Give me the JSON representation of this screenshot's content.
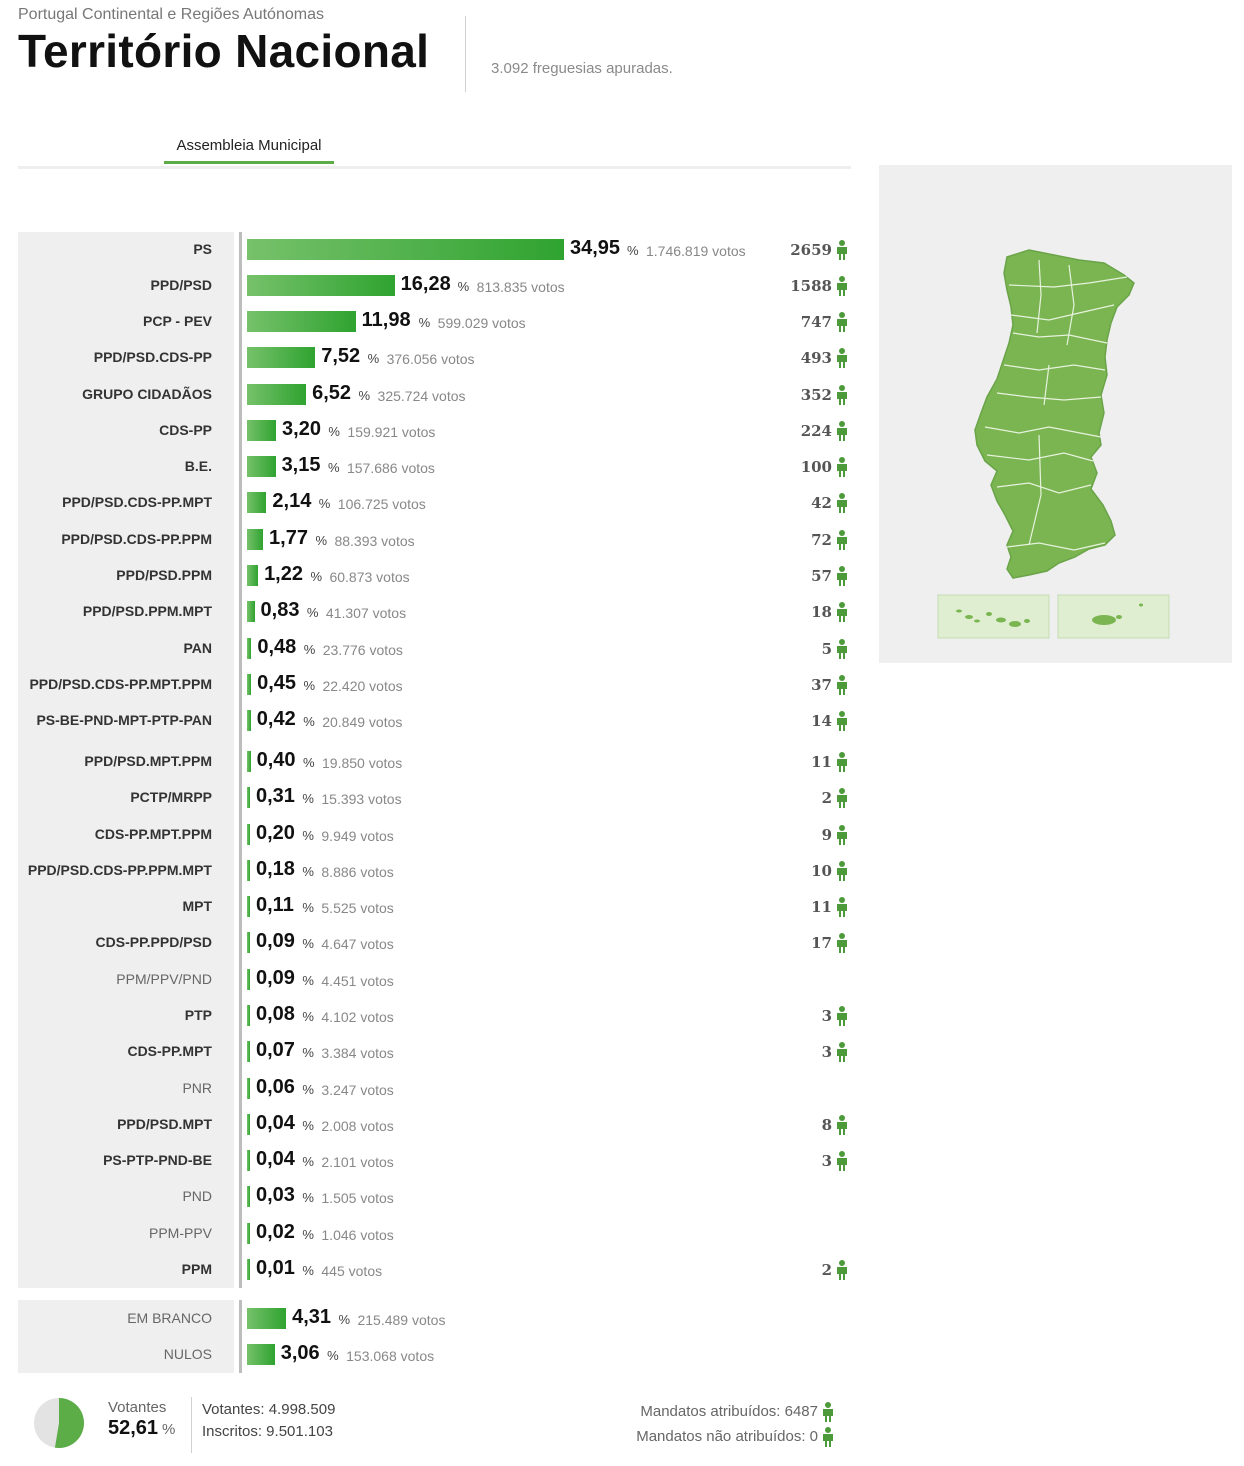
{
  "header": {
    "subtitle": "Portugal Continental e Regiões Autónomas",
    "title": "Território Nacional",
    "freguesias": "3.092 freguesias apuradas."
  },
  "tab": {
    "label": "Assembleia Municipal"
  },
  "colors": {
    "bar_start": "#76c16a",
    "bar_end": "#2fa330",
    "map_fill": "#7ab552",
    "person_icon": "#4d9a3a"
  },
  "chart_data": {
    "type": "bar",
    "orientation": "horizontal",
    "value_unit": "%",
    "xlim": [
      0,
      34.95
    ],
    "parties": [
      {
        "name": "PS",
        "pct": 34.95,
        "pct_label": "34,95",
        "votes": "1.746.819 votos",
        "mandates": "2659",
        "bold": true
      },
      {
        "name": "PPD/PSD",
        "pct": 16.28,
        "pct_label": "16,28",
        "votes": "813.835 votos",
        "mandates": "1588",
        "bold": true
      },
      {
        "name": "PCP - PEV",
        "pct": 11.98,
        "pct_label": "11,98",
        "votes": "599.029 votos",
        "mandates": "747",
        "bold": true
      },
      {
        "name": "PPD/PSD.CDS-PP",
        "pct": 7.52,
        "pct_label": "7,52",
        "votes": "376.056 votos",
        "mandates": "493",
        "bold": true
      },
      {
        "name": "GRUPO CIDADÃOS",
        "pct": 6.52,
        "pct_label": "6,52",
        "votes": "325.724 votos",
        "mandates": "352",
        "bold": true
      },
      {
        "name": "CDS-PP",
        "pct": 3.2,
        "pct_label": "3,20",
        "votes": "159.921 votos",
        "mandates": "224",
        "bold": true
      },
      {
        "name": "B.E.",
        "pct": 3.15,
        "pct_label": "3,15",
        "votes": "157.686 votos",
        "mandates": "100",
        "bold": true
      },
      {
        "name": "PPD/PSD.CDS-PP.MPT",
        "pct": 2.14,
        "pct_label": "2,14",
        "votes": "106.725 votos",
        "mandates": "42",
        "bold": true
      },
      {
        "name": "PPD/PSD.CDS-PP.PPM",
        "pct": 1.77,
        "pct_label": "1,77",
        "votes": "88.393 votos",
        "mandates": "72",
        "bold": true
      },
      {
        "name": "PPD/PSD.PPM",
        "pct": 1.22,
        "pct_label": "1,22",
        "votes": "60.873 votos",
        "mandates": "57",
        "bold": true
      },
      {
        "name": "PPD/PSD.PPM.MPT",
        "pct": 0.83,
        "pct_label": "0,83",
        "votes": "41.307 votos",
        "mandates": "18",
        "bold": true
      },
      {
        "name": "PAN",
        "pct": 0.48,
        "pct_label": "0,48",
        "votes": "23.776 votos",
        "mandates": "5",
        "bold": true
      },
      {
        "name": "PPD/PSD.CDS-PP.MPT.PPM",
        "pct": 0.45,
        "pct_label": "0,45",
        "votes": "22.420 votos",
        "mandates": "37",
        "bold": true
      },
      {
        "name": "PS-BE-PND-MPT-PTP-PAN",
        "pct": 0.42,
        "pct_label": "0,42",
        "votes": "20.849 votos",
        "mandates": "14",
        "bold": true
      },
      {
        "name": "PPD/PSD.MPT.PPM",
        "pct": 0.4,
        "pct_label": "0,40",
        "votes": "19.850 votos",
        "mandates": "11",
        "bold": true
      },
      {
        "name": "PCTP/MRPP",
        "pct": 0.31,
        "pct_label": "0,31",
        "votes": "15.393 votos",
        "mandates": "2",
        "bold": true
      },
      {
        "name": "CDS-PP.MPT.PPM",
        "pct": 0.2,
        "pct_label": "0,20",
        "votes": "9.949 votos",
        "mandates": "9",
        "bold": true
      },
      {
        "name": "PPD/PSD.CDS-PP.PPM.MPT",
        "pct": 0.18,
        "pct_label": "0,18",
        "votes": "8.886 votos",
        "mandates": "10",
        "bold": true
      },
      {
        "name": "MPT",
        "pct": 0.11,
        "pct_label": "0,11",
        "votes": "5.525 votos",
        "mandates": "11",
        "bold": true
      },
      {
        "name": "CDS-PP.PPD/PSD",
        "pct": 0.09,
        "pct_label": "0,09",
        "votes": "4.647 votos",
        "mandates": "17",
        "bold": true
      },
      {
        "name": "PPM/PPV/PND",
        "pct": 0.09,
        "pct_label": "0,09",
        "votes": "4.451 votos",
        "mandates": "",
        "bold": false
      },
      {
        "name": "PTP",
        "pct": 0.08,
        "pct_label": "0,08",
        "votes": "4.102 votos",
        "mandates": "3",
        "bold": true
      },
      {
        "name": "CDS-PP.MPT",
        "pct": 0.07,
        "pct_label": "0,07",
        "votes": "3.384 votos",
        "mandates": "3",
        "bold": true
      },
      {
        "name": "PNR",
        "pct": 0.06,
        "pct_label": "0,06",
        "votes": "3.247 votos",
        "mandates": "",
        "bold": false
      },
      {
        "name": "PPD/PSD.MPT",
        "pct": 0.04,
        "pct_label": "0,04",
        "votes": "2.008 votos",
        "mandates": "8",
        "bold": true
      },
      {
        "name": "PS-PTP-PND-BE",
        "pct": 0.04,
        "pct_label": "0,04",
        "votes": "2.101 votos",
        "mandates": "3",
        "bold": true
      },
      {
        "name": "PND",
        "pct": 0.03,
        "pct_label": "0,03",
        "votes": "1.505 votos",
        "mandates": "",
        "bold": false
      },
      {
        "name": "PPM-PPV",
        "pct": 0.02,
        "pct_label": "0,02",
        "votes": "1.046 votos",
        "mandates": "",
        "bold": false
      },
      {
        "name": "PPM",
        "pct": 0.01,
        "pct_label": "0,01",
        "votes": "445 votos",
        "mandates": "2",
        "bold": true
      }
    ],
    "others": [
      {
        "name": "EM BRANCO",
        "pct": 4.31,
        "pct_label": "4,31",
        "votes": "215.489 votos"
      },
      {
        "name": "NULOS",
        "pct": 3.06,
        "pct_label": "3,06",
        "votes": "153.068 votos"
      }
    ]
  },
  "footer": {
    "votantes_label": "Votantes",
    "votantes_pct": "52,61",
    "votantes_pct_value": 52.61,
    "votantes_line": "Votantes: 4.998.509",
    "inscritos_line": "Inscritos: 9.501.103",
    "mandatos_atribuidos": "Mandatos atribuídos: 6487",
    "mandatos_nao_atribuidos": "Mandatos não atribuídos: 0"
  }
}
